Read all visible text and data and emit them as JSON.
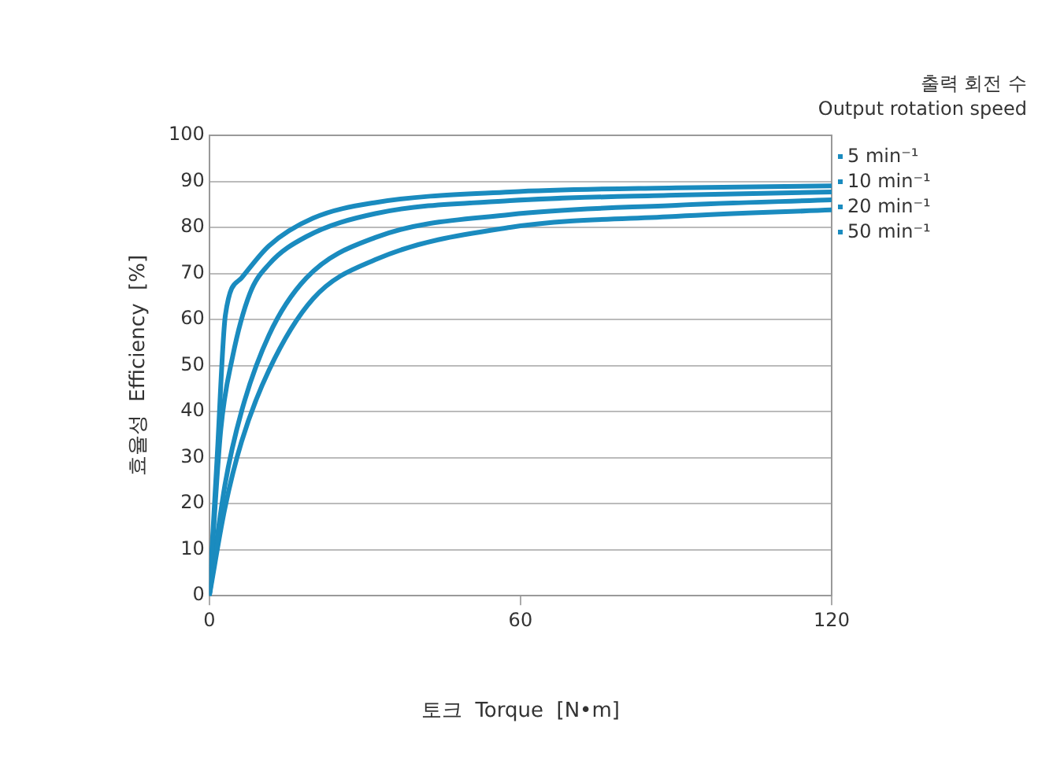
{
  "chart_data": {
    "type": "line",
    "legend_title": "출력 회전 수\nOutput rotation speed",
    "xlabel": "토크  Torque  [N•m]",
    "ylabel": "효율성  Efficiency  [%]",
    "xlim": [
      0,
      120
    ],
    "xticks": [
      0,
      60,
      120
    ],
    "ylim": [
      0,
      100
    ],
    "yticks": [
      0,
      10,
      20,
      30,
      40,
      50,
      60,
      70,
      80,
      90,
      100
    ],
    "grid": "y",
    "marker": "none",
    "line_style": "solid",
    "legend": "right",
    "series": [
      {
        "name": "5 min⁻¹",
        "color": "#1a8bbf",
        "x": [
          0,
          1.5,
          3.1,
          6.2,
          11.5,
          20,
          32,
          58,
          90,
          120
        ],
        "values": [
          0,
          30,
          61,
          69,
          76,
          82,
          85.4,
          87.7,
          88.6,
          89
        ]
      },
      {
        "name": "10 min⁻¹",
        "color": "#1a8bbf",
        "x": [
          0,
          2.2,
          4.5,
          7.8,
          11.5,
          18.7,
          32,
          58,
          90,
          120
        ],
        "values": [
          0,
          36,
          52,
          65.6,
          72,
          78,
          83,
          85.8,
          87,
          87.7
        ]
      },
      {
        "name": "20 min⁻¹",
        "color": "#1a8bbf",
        "x": [
          0,
          3,
          6.2,
          11.5,
          18.7,
          32,
          58,
          90,
          120
        ],
        "values": [
          0,
          24,
          40,
          56.6,
          69,
          77.8,
          82.8,
          84.8,
          86
        ]
      },
      {
        "name": "50 min⁻¹",
        "color": "#1a8bbf",
        "x": [
          0,
          3,
          6.2,
          11.5,
          20,
          32,
          58,
          90,
          120
        ],
        "values": [
          0,
          19,
          33.4,
          49,
          64.5,
          73,
          80,
          82.4,
          83.8
        ]
      }
    ]
  }
}
